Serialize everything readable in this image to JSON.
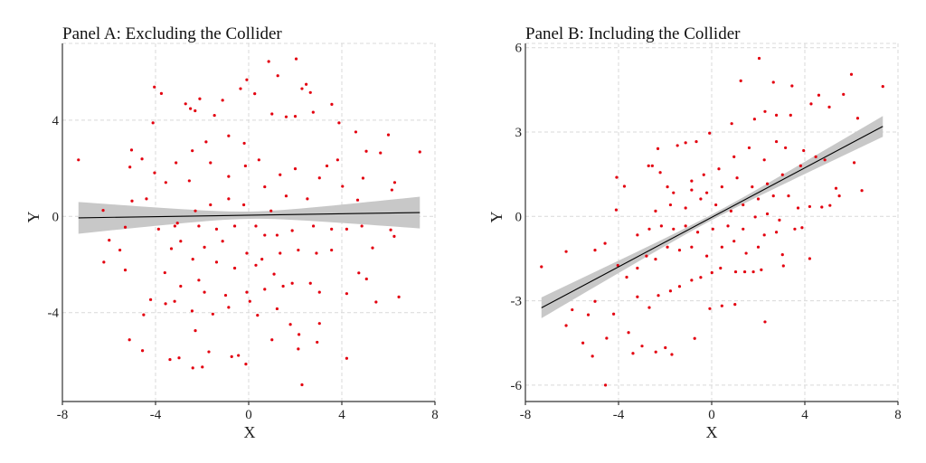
{
  "colors": {
    "points": "#e3000f",
    "line": "#000000",
    "band": "#c8c8c8"
  },
  "chart_data": [
    {
      "type": "scatter",
      "title": "Panel A: Excluding the Collider",
      "xlabel": "X",
      "ylabel": "Y",
      "xlim": [
        -8,
        8
      ],
      "ylim": [
        -7.6,
        7.3
      ],
      "xticks": [
        -8,
        -4,
        0,
        4,
        8
      ],
      "xtick_labels": [
        "-8",
        "-4",
        "0",
        "4",
        "8"
      ],
      "yticks": [
        -4,
        0,
        4
      ],
      "ytick_labels": [
        "-4",
        "0",
        "4"
      ],
      "grid": true,
      "fit": {
        "x": [
          -7.31,
          7.35
        ],
        "y": [
          -0.06,
          0.16
        ],
        "ci_halfwidth_end": 0.66,
        "ci_halfwidth_center": 0.15
      },
      "points": [
        [
          -7.31,
          2.35
        ],
        [
          0.86,
          6.44
        ],
        [
          2.04,
          6.55
        ],
        [
          1.25,
          5.85
        ],
        [
          -4.05,
          5.38
        ],
        [
          -3.75,
          5.11
        ],
        [
          -0.08,
          5.68
        ],
        [
          -0.35,
          5.31
        ],
        [
          0.26,
          5.1
        ],
        [
          2.47,
          5.49
        ],
        [
          2.29,
          5.31
        ],
        [
          2.65,
          5.15
        ],
        [
          3.57,
          4.66
        ],
        [
          -2.1,
          4.89
        ],
        [
          -1.12,
          4.83
        ],
        [
          -2.71,
          4.68
        ],
        [
          -2.5,
          4.48
        ],
        [
          -2.3,
          4.39
        ],
        [
          -4.11,
          3.89
        ],
        [
          -1.47,
          4.2
        ],
        [
          1.0,
          4.26
        ],
        [
          1.61,
          4.14
        ],
        [
          2.0,
          4.16
        ],
        [
          2.77,
          4.33
        ],
        [
          3.88,
          3.89
        ],
        [
          4.6,
          3.51
        ],
        [
          6.0,
          3.39
        ],
        [
          7.35,
          2.68
        ],
        [
          5.66,
          2.64
        ],
        [
          5.05,
          2.71
        ],
        [
          -5.03,
          2.76
        ],
        [
          -4.58,
          2.39
        ],
        [
          -5.1,
          2.05
        ],
        [
          -6.25,
          0.25
        ],
        [
          -5.99,
          -0.99
        ],
        [
          -6.22,
          -1.9
        ],
        [
          -5.53,
          -1.4
        ],
        [
          -5.3,
          -2.23
        ],
        [
          -5.3,
          -0.45
        ],
        [
          -5.12,
          -5.13
        ],
        [
          -4.56,
          -5.58
        ],
        [
          -4.51,
          -4.09
        ],
        [
          -4.21,
          -3.46
        ],
        [
          -3.57,
          -3.63
        ],
        [
          -3.38,
          -5.95
        ],
        [
          -2.99,
          -5.88
        ],
        [
          -2.4,
          -6.3
        ],
        [
          -1.99,
          -6.26
        ],
        [
          -1.71,
          -5.63
        ],
        [
          -0.73,
          -5.83
        ],
        [
          -0.44,
          -5.78
        ],
        [
          -0.12,
          -6.14
        ],
        [
          2.29,
          -7.0
        ],
        [
          4.21,
          -5.9
        ],
        [
          2.94,
          -5.23
        ],
        [
          2.13,
          -5.51
        ],
        [
          2.16,
          -4.91
        ],
        [
          1.79,
          -4.49
        ],
        [
          1.0,
          -5.13
        ],
        [
          3.04,
          -4.45
        ],
        [
          4.21,
          -3.21
        ],
        [
          5.47,
          -3.56
        ],
        [
          6.45,
          -3.35
        ],
        [
          5.06,
          -2.6
        ],
        [
          4.73,
          -2.35
        ],
        [
          5.32,
          -1.31
        ],
        [
          6.25,
          -0.83
        ],
        [
          6.1,
          -0.56
        ],
        [
          6.27,
          1.41
        ],
        [
          6.15,
          1.1
        ],
        [
          4.68,
          0.68
        ],
        [
          4.91,
          1.59
        ],
        [
          4.03,
          1.25
        ],
        [
          0.38,
          -4.11
        ],
        [
          1.22,
          -3.84
        ],
        [
          -1.54,
          -4.06
        ],
        [
          -2.29,
          -4.75
        ],
        [
          -3.18,
          -3.53
        ],
        [
          -2.43,
          -3.93
        ],
        [
          -3.6,
          -2.34
        ],
        [
          -3.32,
          -1.34
        ],
        [
          -3.87,
          -0.53
        ],
        [
          -3.17,
          -0.4
        ],
        [
          -4.39,
          0.73
        ],
        [
          -5.01,
          0.64
        ],
        [
          -4.04,
          1.81
        ],
        [
          -3.56,
          1.41
        ],
        [
          -3.12,
          2.23
        ],
        [
          -2.42,
          2.73
        ],
        [
          -1.83,
          3.1
        ],
        [
          -0.86,
          3.35
        ],
        [
          -0.19,
          3.04
        ],
        [
          -0.14,
          2.1
        ],
        [
          0.44,
          2.35
        ],
        [
          -1.64,
          2.23
        ],
        [
          -0.86,
          1.66
        ],
        [
          -2.55,
          1.48
        ],
        [
          1.35,
          1.73
        ],
        [
          2.0,
          1.98
        ],
        [
          3.04,
          1.6
        ],
        [
          3.36,
          2.1
        ],
        [
          3.82,
          2.35
        ],
        [
          0.69,
          1.23
        ],
        [
          1.61,
          0.85
        ],
        [
          2.52,
          0.73
        ],
        [
          -1.64,
          0.48
        ],
        [
          -0.86,
          0.73
        ],
        [
          -0.21,
          0.48
        ],
        [
          0.96,
          0.23
        ],
        [
          -2.29,
          0.23
        ],
        [
          -3.06,
          -0.28
        ],
        [
          -2.14,
          -0.4
        ],
        [
          -1.38,
          -0.53
        ],
        [
          -0.6,
          -0.4
        ],
        [
          0.31,
          -0.4
        ],
        [
          0.69,
          -0.78
        ],
        [
          1.22,
          -0.78
        ],
        [
          1.87,
          -0.59
        ],
        [
          2.78,
          -0.4
        ],
        [
          3.56,
          -0.53
        ],
        [
          4.21,
          -0.53
        ],
        [
          4.86,
          -0.4
        ],
        [
          -2.92,
          -1.03
        ],
        [
          -1.9,
          -1.28
        ],
        [
          -1.12,
          -1.03
        ],
        [
          -0.08,
          -1.53
        ],
        [
          0.57,
          -1.78
        ],
        [
          1.35,
          -1.53
        ],
        [
          2.13,
          -1.4
        ],
        [
          2.91,
          -1.53
        ],
        [
          3.56,
          -1.4
        ],
        [
          -2.4,
          -1.78
        ],
        [
          -1.38,
          -1.9
        ],
        [
          -0.6,
          -2.15
        ],
        [
          0.31,
          -2.03
        ],
        [
          1.09,
          -2.4
        ],
        [
          1.87,
          -2.78
        ],
        [
          2.65,
          -2.78
        ],
        [
          -2.14,
          -2.65
        ],
        [
          -2.92,
          -2.9
        ],
        [
          -1.9,
          -3.15
        ],
        [
          -0.99,
          -3.28
        ],
        [
          -0.08,
          -3.15
        ],
        [
          0.69,
          -3.03
        ],
        [
          1.48,
          -2.9
        ],
        [
          3.04,
          -3.15
        ],
        [
          -0.86,
          -3.78
        ],
        [
          0.05,
          -3.53
        ]
      ]
    },
    {
      "type": "scatter",
      "title": "Panel B: Including the Collider",
      "xlabel": "X",
      "ylabel": "Y",
      "xlim": [
        -8,
        8
      ],
      "ylim": [
        -6.6,
        6.2
      ],
      "xticks": [
        -8,
        -4,
        0,
        4,
        8
      ],
      "xtick_labels": [
        "-8",
        "-4",
        "0",
        "4",
        "8"
      ],
      "yticks": [
        -6,
        -3,
        0,
        3,
        6
      ],
      "ytick_labels": [
        "-6",
        "-3",
        "0",
        "3",
        "6"
      ],
      "grid": true,
      "fit": {
        "x": [
          -7.31,
          7.35
        ],
        "y": [
          -3.25,
          3.2
        ],
        "ci_halfwidth_end": 0.37,
        "ci_halfwidth_center": 0.1
      },
      "points": [
        [
          -7.31,
          -1.79
        ],
        [
          -6.25,
          -1.25
        ],
        [
          -6.25,
          -3.88
        ],
        [
          -5.99,
          -3.32
        ],
        [
          -5.53,
          -4.5
        ],
        [
          -5.3,
          -3.5
        ],
        [
          -5.12,
          -4.97
        ],
        [
          -4.56,
          -6.0
        ],
        [
          -4.51,
          -4.33
        ],
        [
          -4.21,
          -3.47
        ],
        [
          -4.58,
          -0.96
        ],
        [
          -5.01,
          -1.2
        ],
        [
          -5.01,
          -3.02
        ],
        [
          -4.08,
          1.39
        ],
        [
          -4.1,
          0.23
        ],
        [
          -3.75,
          1.07
        ],
        [
          -3.57,
          -4.13
        ],
        [
          -3.38,
          -4.87
        ],
        [
          -2.99,
          -4.61
        ],
        [
          -2.4,
          -4.82
        ],
        [
          -1.71,
          -4.91
        ],
        [
          -1.99,
          -4.67
        ],
        [
          -0.73,
          -4.34
        ],
        [
          -0.08,
          -3.28
        ],
        [
          0.44,
          -3.18
        ],
        [
          1.0,
          -3.13
        ],
        [
          2.29,
          -3.75
        ],
        [
          2.04,
          5.62
        ],
        [
          1.25,
          4.82
        ],
        [
          2.65,
          4.77
        ],
        [
          3.45,
          4.64
        ],
        [
          6.0,
          5.05
        ],
        [
          5.66,
          4.34
        ],
        [
          7.35,
          4.62
        ],
        [
          4.6,
          4.31
        ],
        [
          4.27,
          4.0
        ],
        [
          5.05,
          3.89
        ],
        [
          6.27,
          3.49
        ],
        [
          2.29,
          3.73
        ],
        [
          2.78,
          3.6
        ],
        [
          3.39,
          3.6
        ],
        [
          1.84,
          3.46
        ],
        [
          0.86,
          3.3
        ],
        [
          -0.09,
          2.96
        ],
        [
          -0.66,
          2.66
        ],
        [
          -1.12,
          2.62
        ],
        [
          -1.47,
          2.52
        ],
        [
          -2.31,
          2.41
        ],
        [
          -2.71,
          1.8
        ],
        [
          -2.55,
          1.8
        ],
        [
          -2.21,
          1.56
        ],
        [
          6.12,
          1.91
        ],
        [
          6.45,
          0.92
        ],
        [
          5.48,
          0.73
        ],
        [
          5.34,
          1.0
        ],
        [
          5.08,
          0.39
        ],
        [
          4.73,
          0.33
        ],
        [
          4.21,
          0.35
        ],
        [
          3.71,
          0.3
        ],
        [
          3.88,
          -0.4
        ],
        [
          3.57,
          -0.45
        ],
        [
          4.21,
          -1.5
        ],
        [
          3.08,
          -1.76
        ],
        [
          3.04,
          -1.36
        ],
        [
          2.13,
          -1.9
        ],
        [
          1.79,
          -1.97
        ],
        [
          1.42,
          -1.97
        ],
        [
          1.03,
          -1.97
        ],
        [
          0.38,
          -1.84
        ],
        [
          0.01,
          -2.0
        ],
        [
          -0.47,
          -2.17
        ],
        [
          -0.86,
          -2.27
        ],
        [
          -1.38,
          -2.49
        ],
        [
          -1.77,
          -2.65
        ],
        [
          -2.29,
          -2.81
        ],
        [
          -2.68,
          -3.24
        ],
        [
          -3.19,
          -2.86
        ],
        [
          -3.65,
          -2.16
        ],
        [
          -4.03,
          -1.74
        ],
        [
          -3.19,
          -1.84
        ],
        [
          -2.8,
          -1.41
        ],
        [
          -2.41,
          -1.52
        ],
        [
          -1.9,
          -1.09
        ],
        [
          -1.38,
          -1.2
        ],
        [
          -0.86,
          -1.09
        ],
        [
          -0.21,
          -1.41
        ],
        [
          0.44,
          -1.09
        ],
        [
          0.96,
          -0.88
        ],
        [
          1.48,
          -1.31
        ],
        [
          2.0,
          -1.09
        ],
        [
          2.26,
          -0.66
        ],
        [
          2.78,
          -0.56
        ],
        [
          -3.19,
          -0.66
        ],
        [
          -2.68,
          -0.45
        ],
        [
          -2.16,
          -0.34
        ],
        [
          -1.64,
          -0.45
        ],
        [
          -1.12,
          -0.34
        ],
        [
          -0.6,
          -0.56
        ],
        [
          0.05,
          -0.45
        ],
        [
          0.7,
          -0.34
        ],
        [
          1.35,
          -0.45
        ],
        [
          1.87,
          -0.02
        ],
        [
          2.39,
          0.09
        ],
        [
          2.91,
          -0.13
        ],
        [
          -2.41,
          0.19
        ],
        [
          -1.77,
          0.41
        ],
        [
          -1.12,
          0.3
        ],
        [
          -0.47,
          0.62
        ],
        [
          0.18,
          0.41
        ],
        [
          0.83,
          0.19
        ],
        [
          1.35,
          0.41
        ],
        [
          2.0,
          0.62
        ],
        [
          2.65,
          0.73
        ],
        [
          3.3,
          0.73
        ],
        [
          -1.64,
          0.84
        ],
        [
          -0.86,
          0.94
        ],
        [
          -0.21,
          0.84
        ],
        [
          0.44,
          1.05
        ],
        [
          1.09,
          1.37
        ],
        [
          1.74,
          1.05
        ],
        [
          2.39,
          1.16
        ],
        [
          3.04,
          1.48
        ],
        [
          3.82,
          1.8
        ],
        [
          4.47,
          2.12
        ],
        [
          4.86,
          2.01
        ],
        [
          0.31,
          1.69
        ],
        [
          0.96,
          2.12
        ],
        [
          1.61,
          2.44
        ],
        [
          2.26,
          2.01
        ],
        [
          2.78,
          2.66
        ],
        [
          3.17,
          2.44
        ],
        [
          3.95,
          2.34
        ],
        [
          -0.86,
          1.26
        ],
        [
          -0.34,
          1.48
        ],
        [
          -1.9,
          1.05
        ]
      ]
    }
  ]
}
